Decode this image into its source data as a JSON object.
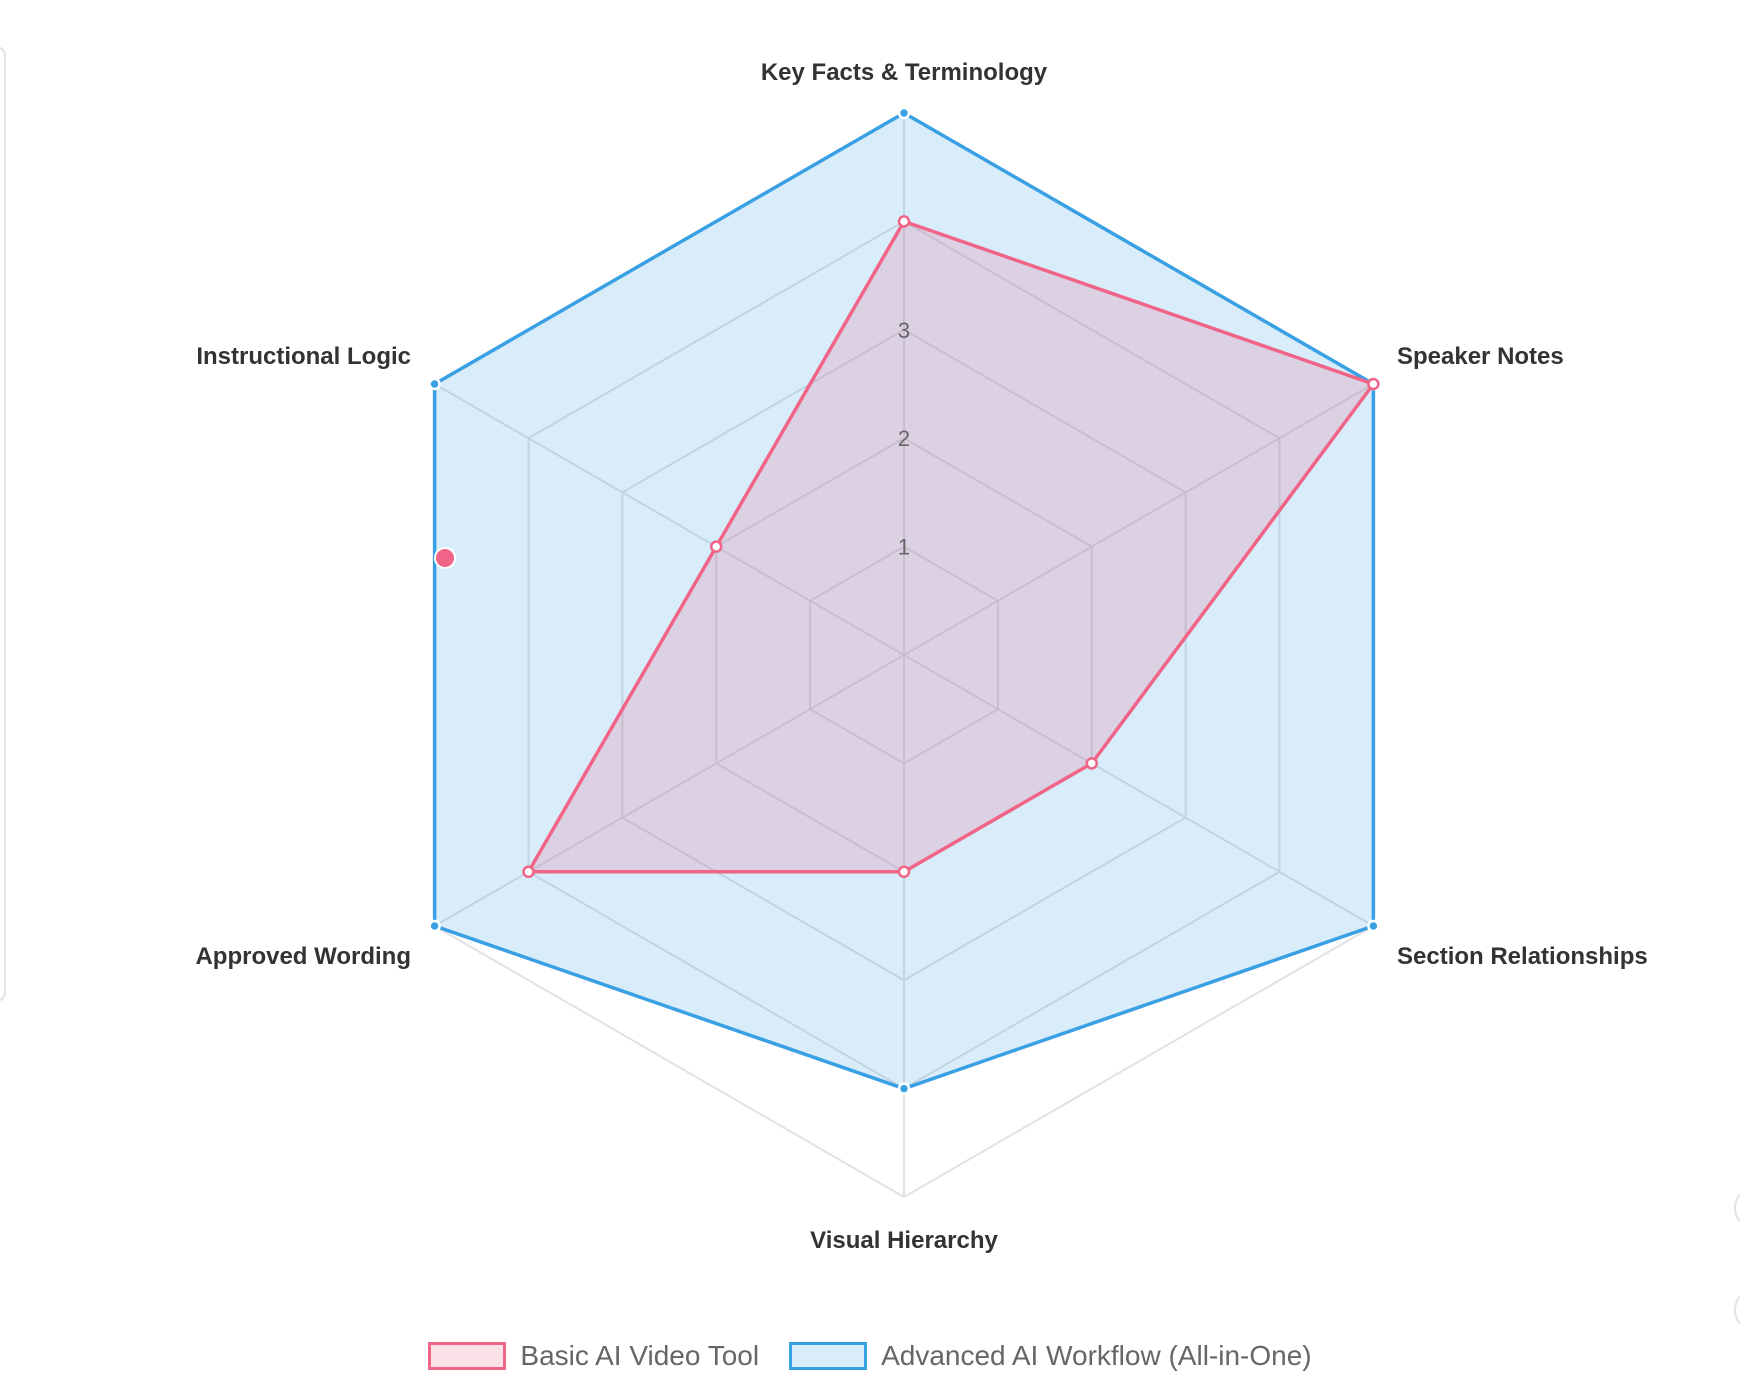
{
  "chart_data": {
    "type": "radar",
    "axes": [
      "Key Facts & Terminology",
      "Speaker Notes",
      "Section Relationships",
      "Visual Hierarchy",
      "Approved Wording",
      "Instructional Logic"
    ],
    "ticks": [
      "1",
      "2",
      "3"
    ],
    "rmin": 0,
    "rmax": 5,
    "series": [
      {
        "name": "Basic AI Video Tool",
        "values": [
          4,
          5,
          2,
          2,
          4,
          2
        ],
        "color": "#f06587",
        "fill": "rgba(240,101,135,0.2)"
      },
      {
        "name": "Advanced AI Workflow (All-in-One)",
        "values": [
          5,
          5,
          5,
          4,
          5,
          5
        ],
        "color": "#3aa0e4",
        "fill": "rgba(58,160,228,0.2)"
      }
    ],
    "legend_position": "bottom",
    "grid": true
  }
}
